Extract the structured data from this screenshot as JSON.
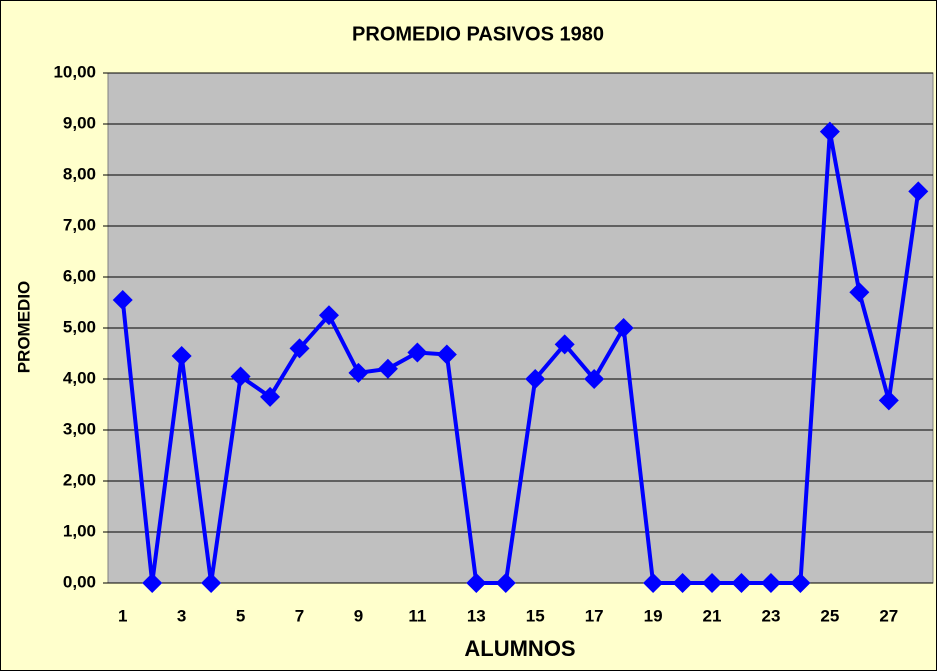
{
  "chart_data": {
    "type": "line",
    "title": "PROMEDIO PASIVOS 1980",
    "x_label": "ALUMNOS",
    "y_label": "PROMEDIO",
    "categories": [
      1,
      null,
      3,
      null,
      5,
      null,
      7,
      null,
      9,
      null,
      11,
      null,
      13,
      null,
      15,
      null,
      17,
      null,
      19,
      null,
      21,
      null,
      23,
      null,
      25,
      null,
      27,
      null
    ],
    "series": [
      {
        "name": "PROMEDIO",
        "color": "#0000ff",
        "values": [
          5.55,
          0,
          4.45,
          0,
          4.05,
          3.65,
          4.6,
          5.25,
          4.12,
          4.2,
          4.52,
          4.48,
          0,
          0,
          4.0,
          4.68,
          4.0,
          5.0,
          0,
          0,
          0,
          0,
          0,
          0,
          8.85,
          5.7,
          3.58,
          7.68
        ]
      }
    ],
    "ylim": [
      0,
      10
    ],
    "yticks": [
      {
        "value": 0,
        "label": "0,00"
      },
      {
        "value": 1,
        "label": "1,00"
      },
      {
        "value": 2,
        "label": "2,00"
      },
      {
        "value": 3,
        "label": "3,00"
      },
      {
        "value": 4,
        "label": "4,00"
      },
      {
        "value": 5,
        "label": "5,00"
      },
      {
        "value": 6,
        "label": "6,00"
      },
      {
        "value": 7,
        "label": "7,00"
      },
      {
        "value": 8,
        "label": "8,00"
      },
      {
        "value": 9,
        "label": "9,00"
      },
      {
        "value": 10,
        "label": "10,00"
      }
    ],
    "grid": true,
    "plot_background": "#c0c0c0",
    "background": "#ffffcc"
  }
}
